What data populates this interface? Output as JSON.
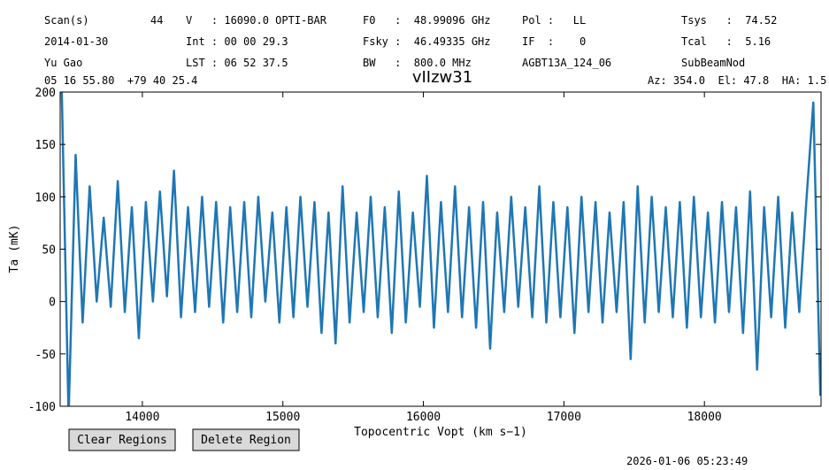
{
  "chart_data": {
    "type": "line",
    "title": "vIIzw31",
    "header": [
      [
        "Scan(s)",
        "44",
        "V   : 16090.0 OPTI-BAR",
        "F0   :  48.99096 GHz",
        "Pol :   LL",
        "Tsys   :  74.52"
      ],
      [
        "2014-01-30",
        "Int : 00 00 29.3",
        "Fsky :  46.49335 GHz",
        "IF  :    0",
        "Tcal   :  5.16"
      ],
      [
        "Yu Gao",
        "LST : 06 52 37.5",
        "BW   :  800.0 MHz",
        "AGBT13A_124_06",
        "SubBeamNod"
      ]
    ],
    "coordinates": "05 16 55.80  +79 40 25.4",
    "pointing": "Az: 354.0  El: 47.8  HA: 1.5",
    "xlabel": "Topocentric Vopt (km s−1)",
    "ylabel": "Ta (mK)",
    "xlim": [
      13415,
      18830
    ],
    "ylim": [
      -100,
      200
    ],
    "xticks": [
      14000,
      15000,
      16000,
      17000,
      18000
    ],
    "yticks": [
      -100,
      -50,
      0,
      50,
      100,
      150,
      200
    ],
    "grid": false,
    "x": [
      13425,
      13475,
      13525,
      13575,
      13625,
      13675,
      13725,
      13775,
      13825,
      13875,
      13925,
      13975,
      14025,
      14075,
      14125,
      14175,
      14225,
      14275,
      14325,
      14375,
      14425,
      14475,
      14525,
      14575,
      14625,
      14675,
      14725,
      14775,
      14825,
      14875,
      14925,
      14975,
      15025,
      15075,
      15125,
      15175,
      15225,
      15275,
      15325,
      15375,
      15425,
      15475,
      15525,
      15575,
      15625,
      15675,
      15725,
      15775,
      15825,
      15875,
      15925,
      15975,
      16025,
      16075,
      16125,
      16175,
      16225,
      16275,
      16325,
      16375,
      16425,
      16475,
      16525,
      16575,
      16625,
      16675,
      16725,
      16775,
      16825,
      16875,
      16925,
      16975,
      17025,
      17075,
      17125,
      17175,
      17225,
      17275,
      17325,
      17375,
      17425,
      17475,
      17525,
      17575,
      17625,
      17675,
      17725,
      17775,
      17825,
      17875,
      17925,
      17975,
      18025,
      18075,
      18125,
      18175,
      18225,
      18275,
      18325,
      18375,
      18425,
      18475,
      18525,
      18575,
      18625,
      18675,
      18725,
      18775,
      18825
    ],
    "series": [
      {
        "color": "#1f77b4",
        "values": [
          210,
          -110,
          140,
          -20,
          110,
          0,
          80,
          -5,
          115,
          -10,
          90,
          -35,
          95,
          0,
          105,
          5,
          125,
          -15,
          90,
          -10,
          100,
          -5,
          95,
          -20,
          90,
          -10,
          95,
          -15,
          100,
          0,
          85,
          -20,
          90,
          -15,
          100,
          -5,
          95,
          -30,
          85,
          -40,
          110,
          -20,
          85,
          -10,
          100,
          -15,
          90,
          -30,
          105,
          -20,
          85,
          -5,
          120,
          -25,
          95,
          -10,
          110,
          -15,
          90,
          -25,
          95,
          -45,
          85,
          -10,
          100,
          -5,
          90,
          -15,
          110,
          -20,
          95,
          -15,
          90,
          -30,
          100,
          -10,
          95,
          -20,
          85,
          -10,
          95,
          -55,
          110,
          -20,
          100,
          -10,
          90,
          -15,
          95,
          -25,
          100,
          -15,
          85,
          -20,
          95,
          -10,
          90,
          -30,
          105,
          -65,
          90,
          -15,
          100,
          -25,
          85,
          -10,
          95,
          190,
          -90
        ]
      }
    ]
  },
  "buttons": [
    "Clear Regions",
    "Delete Region"
  ],
  "timestamp": "2026-01-06 05:23:49"
}
